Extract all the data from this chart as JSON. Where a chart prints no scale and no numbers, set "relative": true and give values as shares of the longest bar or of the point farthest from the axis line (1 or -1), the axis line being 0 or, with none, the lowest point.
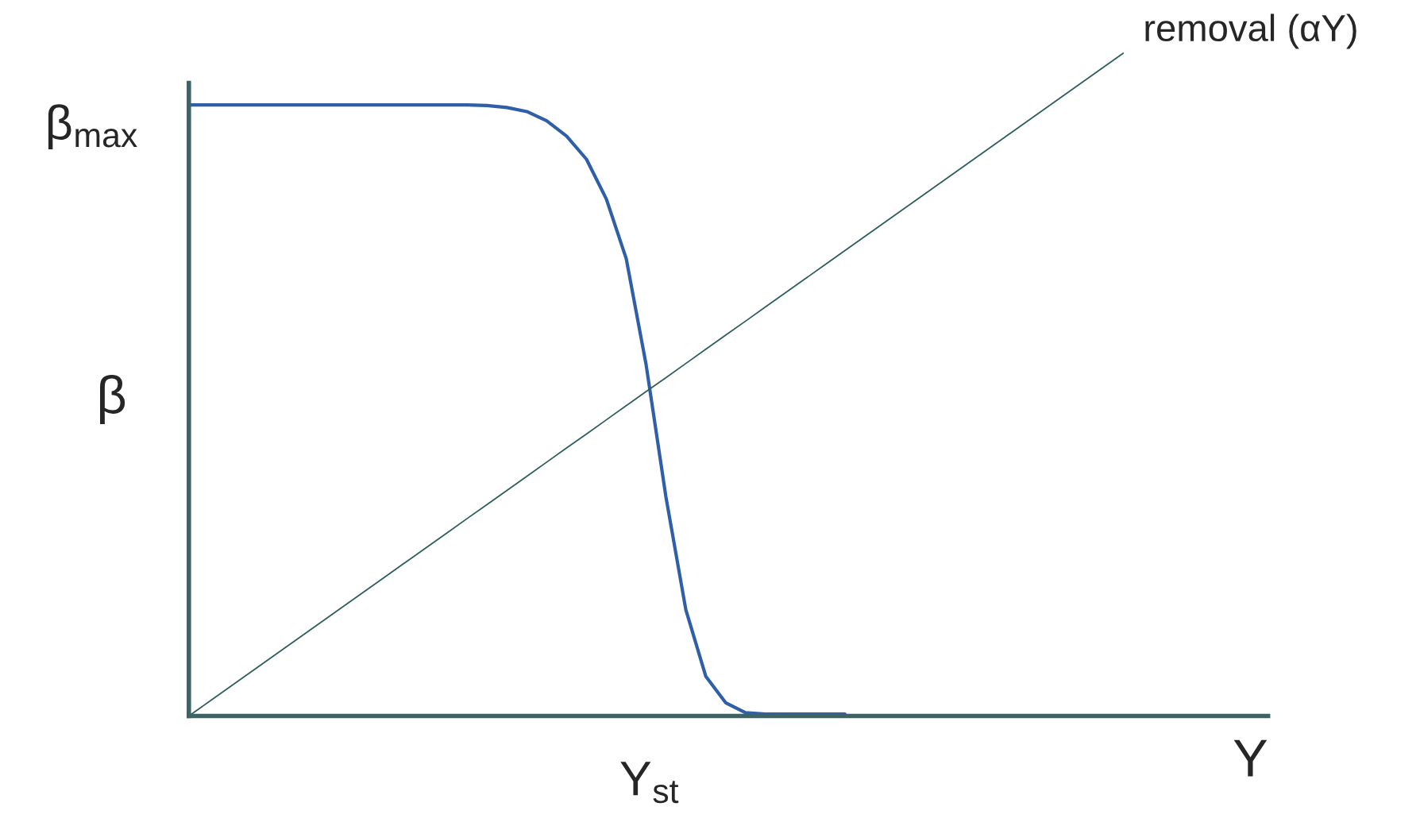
{
  "chart_data": {
    "type": "line",
    "relative": true,
    "xlabel": "Y",
    "ylabel": "β",
    "categories": [
      null,
      null,
      null,
      null,
      null,
      null,
      null,
      null,
      null,
      null,
      null,
      null,
      null,
      null,
      null,
      null,
      null,
      null,
      null,
      null,
      null,
      null,
      null,
      null,
      null,
      null,
      null,
      null,
      null,
      null,
      null,
      null,
      null,
      null,
      null,
      null,
      null,
      null,
      null,
      null,
      null,
      null,
      null,
      null,
      null,
      null,
      null,
      null
    ],
    "series": [
      {
        "color": "#2f5fa8",
        "values": [
          0.922,
          0.922,
          0.922,
          0.922,
          0.922,
          0.922,
          0.922,
          0.922,
          0.922,
          0.922,
          0.922,
          0.922,
          0.922,
          0.922,
          0.922,
          0.921,
          0.918,
          0.912,
          0.898,
          0.875,
          0.84,
          0.78,
          0.69,
          0.53,
          0.33,
          0.16,
          0.06,
          0.02,
          0.005,
          0.003,
          0.003,
          0.003,
          0.003,
          0.003,
          null,
          null,
          null,
          null,
          null,
          null,
          null,
          null,
          null,
          null,
          null,
          null,
          null,
          null
        ]
      },
      {
        "name": "removal (αY)",
        "color": "#2e5e5a",
        "values": [
          0,
          0.0213,
          0.0426,
          0.0638,
          0.0851,
          0.1064,
          0.1277,
          0.1489,
          0.1702,
          0.1915,
          0.2128,
          0.234,
          0.2553,
          0.2766,
          0.2979,
          0.3191,
          0.3404,
          0.3617,
          0.383,
          0.4043,
          0.4255,
          0.4468,
          0.4681,
          0.4894,
          0.5106,
          0.5319,
          0.5532,
          0.5745,
          0.5957,
          0.617,
          0.6383,
          0.6596,
          0.6809,
          0.7021,
          0.7234,
          0.7447,
          0.766,
          0.7872,
          0.8085,
          0.8298,
          0.8511,
          0.8723,
          0.8936,
          0.9149,
          0.9362,
          0.9574,
          0.9787,
          1
        ]
      }
    ],
    "annotations": [
      "β$_{max}$",
      "Y$_{st}$"
    ],
    "legend": false,
    "marker": "none",
    "line_style": "solid"
  }
}
